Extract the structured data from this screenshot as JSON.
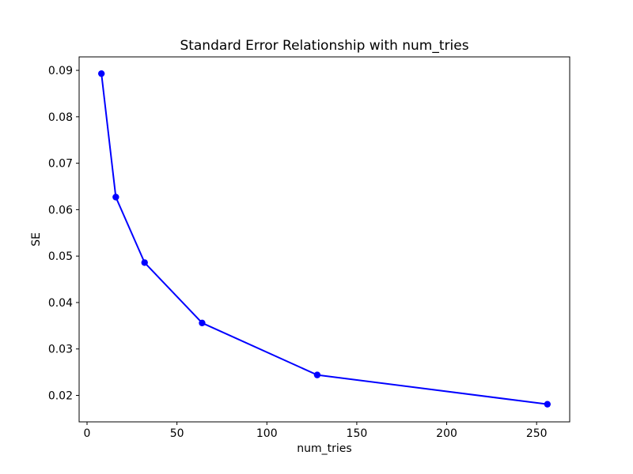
{
  "chart_data": {
    "type": "line",
    "title": "Standard Error Relationship with num_tries",
    "xlabel": "num_tries",
    "ylabel": "SE",
    "series": [
      {
        "name": "SE",
        "x": [
          8,
          16,
          32,
          64,
          128,
          256
        ],
        "y": [
          0.0893,
          0.0627,
          0.0486,
          0.0356,
          0.0244,
          0.0181
        ],
        "line_color": "#0000ff",
        "marker": "circle"
      }
    ],
    "xticks": [
      0,
      50,
      100,
      150,
      200,
      250
    ],
    "yticks": [
      0.02,
      0.03,
      0.04,
      0.05,
      0.06,
      0.07,
      0.08,
      0.09
    ],
    "xlim": [
      -4.4,
      268.4
    ],
    "ylim": [
      0.0143,
      0.0929
    ],
    "grid": false,
    "legend_position": "none",
    "background_color": "#ffffff",
    "spine_color": "#000000"
  }
}
